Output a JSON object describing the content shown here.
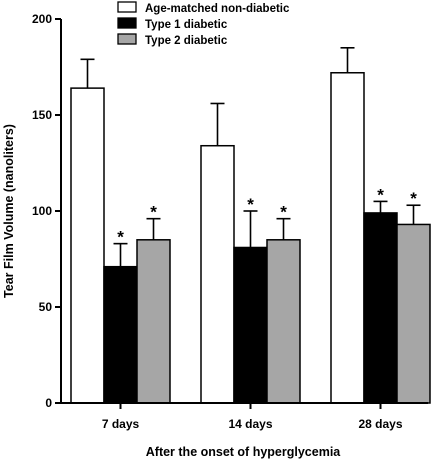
{
  "chart_data": {
    "type": "bar",
    "title": "",
    "xlabel": "After the onset of hyperglycemia",
    "ylabel": "Tear Film Volume (nanoliters)",
    "ylim": [
      0,
      200
    ],
    "yticks": [
      0,
      50,
      100,
      150,
      200
    ],
    "categories": [
      "7 days",
      "14 days",
      "28 days"
    ],
    "legend_position": "top-left",
    "series": [
      {
        "name": "Age-matched non-diabetic",
        "color": "#ffffff",
        "values": [
          164,
          134,
          172
        ],
        "errors": [
          15,
          22,
          13
        ],
        "significance": [
          "",
          "",
          ""
        ]
      },
      {
        "name": "Type 1 diabetic",
        "color": "#000000",
        "values": [
          71,
          81,
          99
        ],
        "errors": [
          12,
          19,
          6
        ],
        "significance": [
          "*",
          "*",
          "*"
        ]
      },
      {
        "name": "Type 2 diabetic",
        "color": "#a6a6a6",
        "values": [
          85,
          85,
          93
        ],
        "errors": [
          11,
          11,
          10
        ],
        "significance": [
          "*",
          "*",
          "*"
        ]
      }
    ]
  }
}
